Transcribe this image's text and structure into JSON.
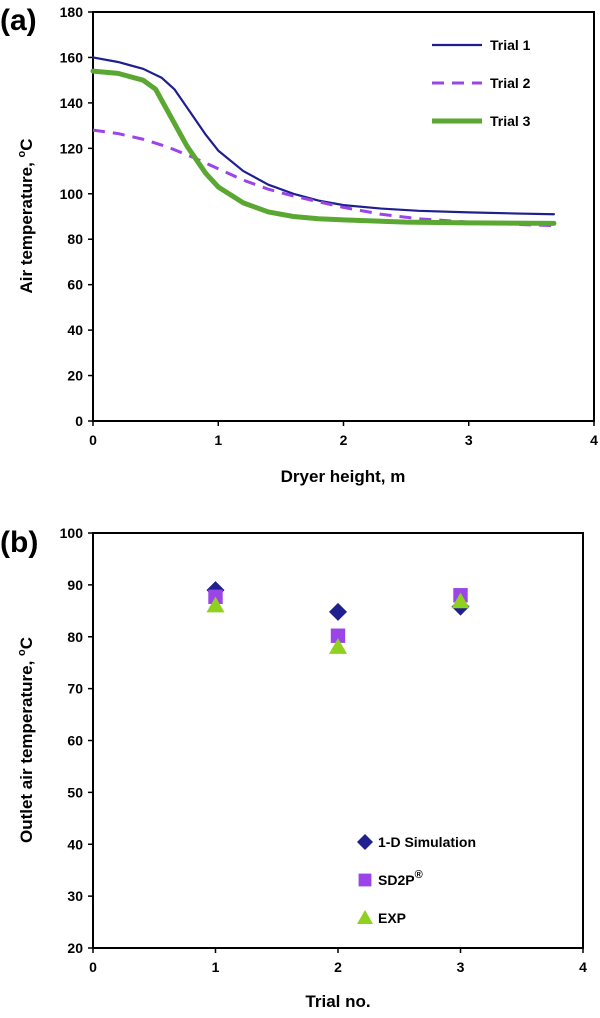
{
  "panels": {
    "a": {
      "label": "(a)"
    },
    "b": {
      "label": "(b)"
    }
  },
  "chart_data": [
    {
      "type": "line",
      "panel": "a",
      "xlabel": "Dryer height, m",
      "ylabel": "Air temperature, °C",
      "ylabel_parts": {
        "main": "Air temperature, ",
        "sup": "o",
        "unit": "C"
      },
      "xlim": [
        0,
        4
      ],
      "ylim": [
        0,
        180
      ],
      "xticks": [
        0,
        1,
        2,
        3,
        4
      ],
      "yticks": [
        0,
        20,
        40,
        60,
        80,
        100,
        120,
        140,
        160,
        180
      ],
      "grid": false,
      "legend_position": "top-right",
      "series": [
        {
          "name": "Trial 1",
          "color": "#1f1f8f",
          "style": "solid",
          "x": [
            0,
            0.2,
            0.4,
            0.55,
            0.65,
            0.75,
            0.9,
            1.0,
            1.2,
            1.4,
            1.6,
            1.8,
            2.0,
            2.3,
            2.6,
            3.0,
            3.4,
            3.68
          ],
          "y": [
            160,
            158,
            155,
            151,
            146,
            138,
            126,
            119,
            110,
            104,
            100,
            97,
            95,
            93.5,
            92.5,
            91.8,
            91.3,
            91
          ]
        },
        {
          "name": "Trial 2",
          "color": "#9b45e8",
          "style": "dashed",
          "x": [
            0,
            0.2,
            0.4,
            0.6,
            0.8,
            1.0,
            1.2,
            1.4,
            1.6,
            1.8,
            2.0,
            2.3,
            2.6,
            3.0,
            3.4,
            3.68
          ],
          "y": [
            128,
            126.5,
            124,
            120.5,
            116,
            111,
            106,
            102,
            99,
            96.5,
            94,
            91,
            89,
            87.5,
            86.5,
            86
          ]
        },
        {
          "name": "Trial 3",
          "color": "#5aa832",
          "style": "solid",
          "x": [
            0,
            0.2,
            0.4,
            0.5,
            0.55,
            0.65,
            0.75,
            0.9,
            1.0,
            1.2,
            1.4,
            1.6,
            1.8,
            2.0,
            2.5,
            3.0,
            3.68
          ],
          "y": [
            154,
            153,
            150,
            146,
            141,
            131,
            121,
            109,
            103,
            96,
            92,
            90,
            89,
            88.5,
            87.5,
            87.2,
            87
          ]
        }
      ]
    },
    {
      "type": "scatter",
      "panel": "b",
      "xlabel": "Trial no.",
      "ylabel": "Outlet air temperature, °C",
      "ylabel_parts": {
        "main": "Outlet air temperature, ",
        "sup": "o",
        "unit": "C"
      },
      "xlim": [
        0,
        4
      ],
      "ylim": [
        20,
        100
      ],
      "xticks": [
        0,
        1,
        2,
        3,
        4
      ],
      "yticks": [
        20,
        30,
        40,
        50,
        60,
        70,
        80,
        90,
        100
      ],
      "grid": false,
      "legend_position": "bottom-right",
      "series": [
        {
          "name": "1-D Simulation",
          "legend": {
            "text": "1-D Simulation",
            "sup": ""
          },
          "marker": "diamond",
          "color": "#1f1f8f",
          "x": [
            1,
            2,
            3
          ],
          "y": [
            89,
            84.8,
            85.8
          ]
        },
        {
          "name": "SD2P®",
          "legend": {
            "text": "SD2P",
            "sup": "®"
          },
          "marker": "square",
          "color": "#9b45e8",
          "x": [
            1,
            2,
            3
          ],
          "y": [
            87.7,
            80.2,
            88
          ]
        },
        {
          "name": "EXP",
          "legend": {
            "text": "EXP",
            "sup": ""
          },
          "marker": "triangle",
          "color": "#8fd11f",
          "x": [
            1,
            2,
            3
          ],
          "y": [
            86,
            78,
            86.8
          ]
        }
      ]
    }
  ]
}
